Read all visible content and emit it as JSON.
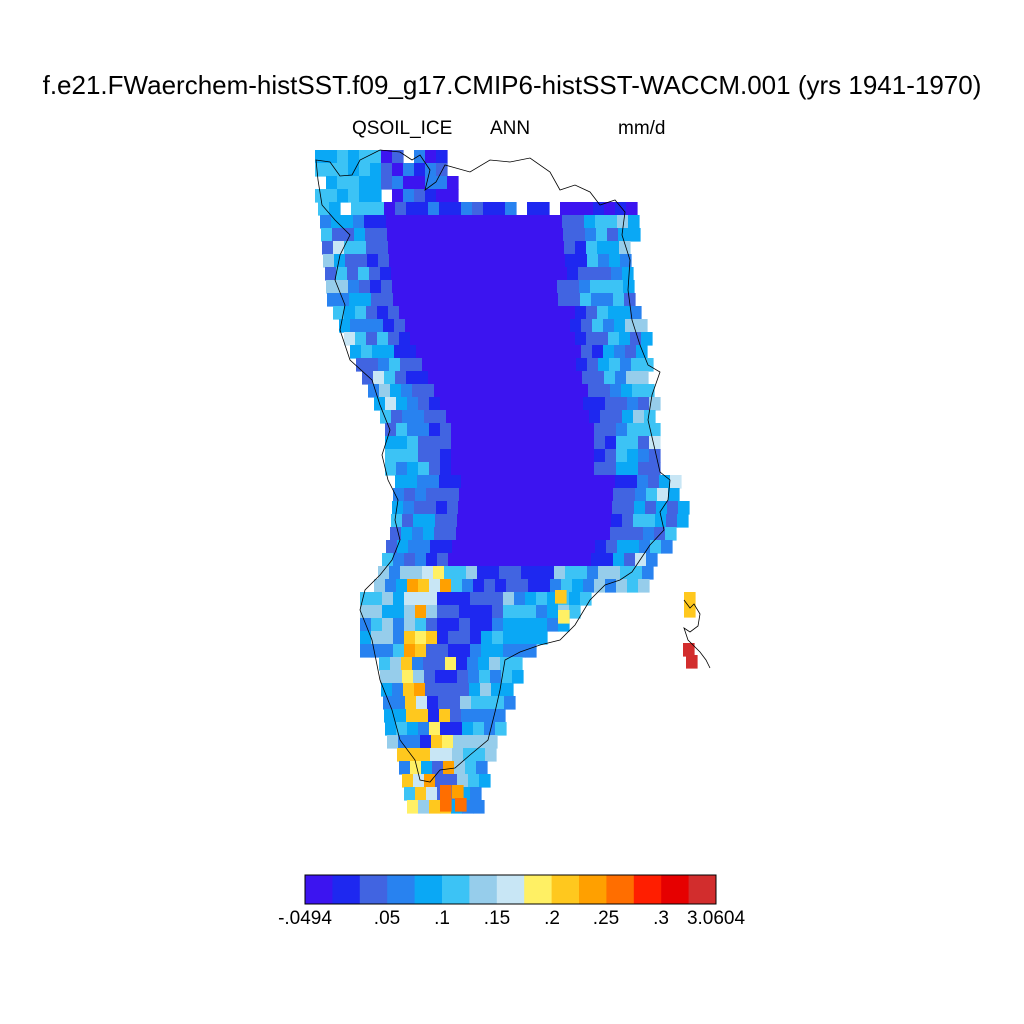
{
  "header": {
    "title": "f.e21.FWaerchem-histSST.f09_g17.CMIP6-histSST-WACCM.001 (yrs 1941-1970)",
    "variable": "QSOIL_ICE",
    "season": "ANN",
    "units": "mm/d"
  },
  "colors": {
    "palette": [
      "#3c14f0",
      "#1e28f0",
      "#4164e1",
      "#2882f0",
      "#0aa8f5",
      "#3cc3f5",
      "#96cdeb",
      "#c8e6f5",
      "#fff064",
      "#ffc81e",
      "#ffa000",
      "#ff6e00",
      "#ff1e00",
      "#e60000",
      "#d22d2d"
    ],
    "coastline": "#000000"
  },
  "colorbar": {
    "tick_labels": [
      "-.0494",
      ".05",
      ".1",
      ".15",
      ".2",
      ".25",
      ".3",
      "3.0604"
    ]
  }
}
